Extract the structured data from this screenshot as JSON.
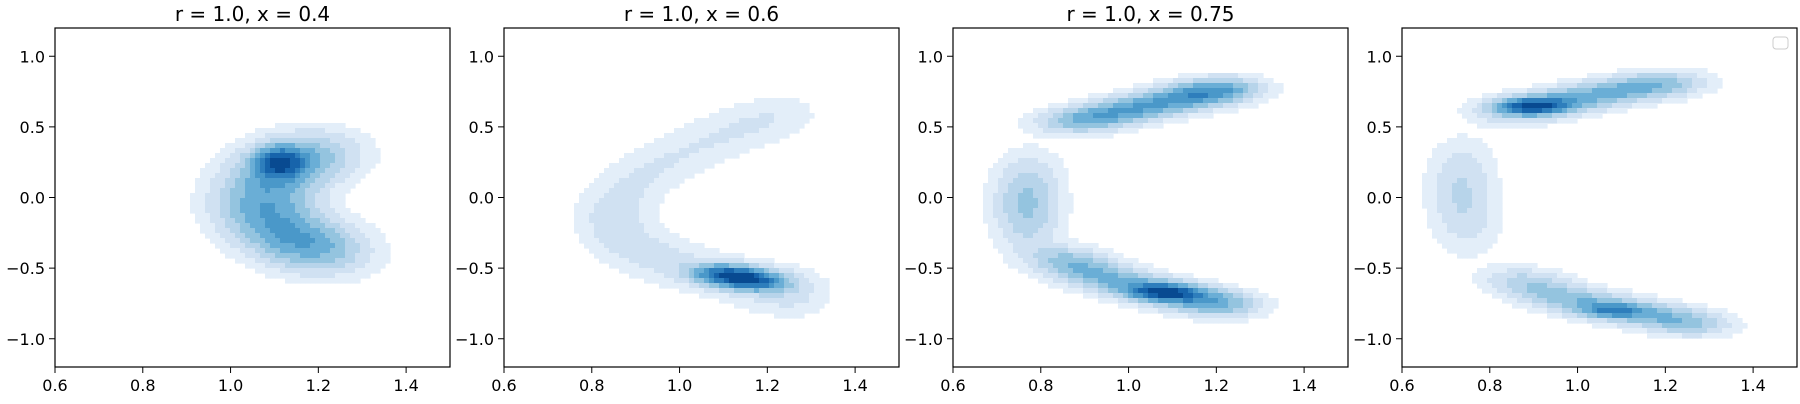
{
  "colors": {
    "levels": [
      "#f7fbff",
      "#e3eef9",
      "#d0e1f2",
      "#b7d4ea",
      "#94c4df",
      "#6aaed6",
      "#4a98c9",
      "#2e7ebc",
      "#1764ab",
      "#084a91"
    ],
    "axes": "#000000"
  },
  "chart_data": [
    {
      "type": "contour",
      "title": "r = 1.0, x = 0.4",
      "xlim": [
        0.6,
        1.5
      ],
      "ylim": [
        -1.2,
        1.2
      ],
      "xticks": [
        0.6,
        0.8,
        1.0,
        1.2,
        1.4
      ],
      "yticks": [
        -1.0,
        -0.5,
        0.0,
        0.5,
        1.0
      ],
      "xtick_labels": [
        "0.6",
        "0.8",
        "1.0",
        "1.2",
        "1.4"
      ],
      "ytick_labels": [
        "−1.0",
        "−0.5",
        "0.0",
        "0.5",
        "1.0"
      ],
      "density_blobs": [
        {
          "points": [
            [
              1.22,
              0.34
            ],
            [
              1.1,
              0.2
            ],
            [
              1.06,
              -0.08
            ],
            [
              1.14,
              -0.3
            ],
            [
              1.25,
              -0.42
            ]
          ],
          "sx": 0.075,
          "sy": 0.12,
          "weight": 1.0
        },
        {
          "points": [
            [
              1.11,
              0.25
            ]
          ],
          "sx": 0.035,
          "sy": 0.07,
          "weight": 1.1
        }
      ],
      "legend": false
    },
    {
      "type": "contour",
      "title": "r = 1.0, x = 0.6",
      "xlim": [
        0.6,
        1.5
      ],
      "ylim": [
        -1.2,
        1.2
      ],
      "xticks": [
        0.6,
        0.8,
        1.0,
        1.2,
        1.4
      ],
      "yticks": [
        -1.0,
        -0.5,
        0.0,
        0.5,
        1.0
      ],
      "xtick_labels": [
        "0.6",
        "0.8",
        "1.0",
        "1.2",
        "1.4"
      ],
      "ytick_labels": [
        "−1.0",
        "−0.5",
        "0.0",
        "0.5",
        "1.0"
      ],
      "density_blobs": [
        {
          "points": [
            [
              1.27,
              0.62
            ],
            [
              1.1,
              0.45
            ],
            [
              0.93,
              0.2
            ],
            [
              0.83,
              -0.1
            ],
            [
              0.88,
              -0.35
            ],
            [
              1.02,
              -0.5
            ],
            [
              1.2,
              -0.64
            ],
            [
              1.3,
              -0.7
            ]
          ],
          "sx": 0.055,
          "sy": 0.11,
          "weight": 1.0
        },
        {
          "points": [
            [
              1.08,
              -0.52
            ],
            [
              1.2,
              -0.62
            ]
          ],
          "sx": 0.05,
          "sy": 0.045,
          "weight": 1.2
        }
      ],
      "legend": false
    },
    {
      "type": "contour",
      "title": "r = 1.0, x = 0.75",
      "xlim": [
        0.6,
        1.5
      ],
      "ylim": [
        -1.2,
        1.2
      ],
      "xticks": [
        0.6,
        0.8,
        1.0,
        1.2,
        1.4
      ],
      "yticks": [
        -1.0,
        -0.5,
        0.0,
        0.5,
        1.0
      ],
      "xtick_labels": [
        "0.6",
        "0.8",
        "1.0",
        "1.2",
        "1.4"
      ],
      "ytick_labels": [
        "−1.0",
        "−0.5",
        "0.0",
        "0.5",
        "1.0"
      ],
      "density_blobs": [
        {
          "points": [
            [
              0.85,
              0.52
            ],
            [
              1.0,
              0.62
            ],
            [
              1.15,
              0.72
            ],
            [
              1.25,
              0.79
            ]
          ],
          "sx": 0.06,
          "sy": 0.06,
          "weight": 1.0
        },
        {
          "points": [
            [
              0.78,
              0.2
            ],
            [
              0.76,
              -0.05
            ],
            [
              0.78,
              -0.3
            ]
          ],
          "sx": 0.05,
          "sy": 0.14,
          "weight": 0.25
        },
        {
          "points": [
            [
              0.84,
              -0.4
            ],
            [
              0.92,
              -0.55
            ],
            [
              1.05,
              -0.65
            ],
            [
              1.15,
              -0.72
            ],
            [
              1.25,
              -0.78
            ]
          ],
          "sx": 0.06,
          "sy": 0.06,
          "weight": 1.0
        },
        {
          "points": [
            [
              1.08,
              -0.67
            ]
          ],
          "sx": 0.05,
          "sy": 0.035,
          "weight": 0.9
        }
      ],
      "legend": false
    },
    {
      "type": "contour",
      "title": "",
      "xlim": [
        0.6,
        1.5
      ],
      "ylim": [
        -1.2,
        1.2
      ],
      "xticks": [
        0.6,
        0.8,
        1.0,
        1.2,
        1.4
      ],
      "yticks": [
        -1.0,
        -0.5,
        0.0,
        0.5,
        1.0
      ],
      "xtick_labels": [
        "0.6",
        "0.8",
        "1.0",
        "1.2",
        "1.4"
      ],
      "ytick_labels": [
        "−1.0",
        "−0.5",
        "0.0",
        "0.5",
        "1.0"
      ],
      "density_blobs": [
        {
          "points": [
            [
              0.83,
              0.6
            ],
            [
              0.95,
              0.67
            ],
            [
              1.1,
              0.76
            ],
            [
              1.25,
              0.83
            ]
          ],
          "sx": 0.06,
          "sy": 0.06,
          "weight": 1.0
        },
        {
          "points": [
            [
              0.9,
              0.65
            ]
          ],
          "sx": 0.05,
          "sy": 0.035,
          "weight": 1.1
        },
        {
          "points": [
            [
              0.74,
              0.3
            ],
            [
              0.73,
              0.0
            ],
            [
              0.76,
              -0.3
            ]
          ],
          "sx": 0.05,
          "sy": 0.15,
          "weight": 0.22
        },
        {
          "points": [
            [
              0.85,
              -0.55
            ],
            [
              0.95,
              -0.7
            ],
            [
              1.07,
              -0.78
            ],
            [
              1.2,
              -0.85
            ],
            [
              1.3,
              -0.92
            ]
          ],
          "sx": 0.06,
          "sy": 0.06,
          "weight": 0.95
        },
        {
          "points": [
            [
              1.08,
              -0.8
            ]
          ],
          "sx": 0.05,
          "sy": 0.035,
          "weight": 0.7
        }
      ],
      "legend": true
    }
  ]
}
